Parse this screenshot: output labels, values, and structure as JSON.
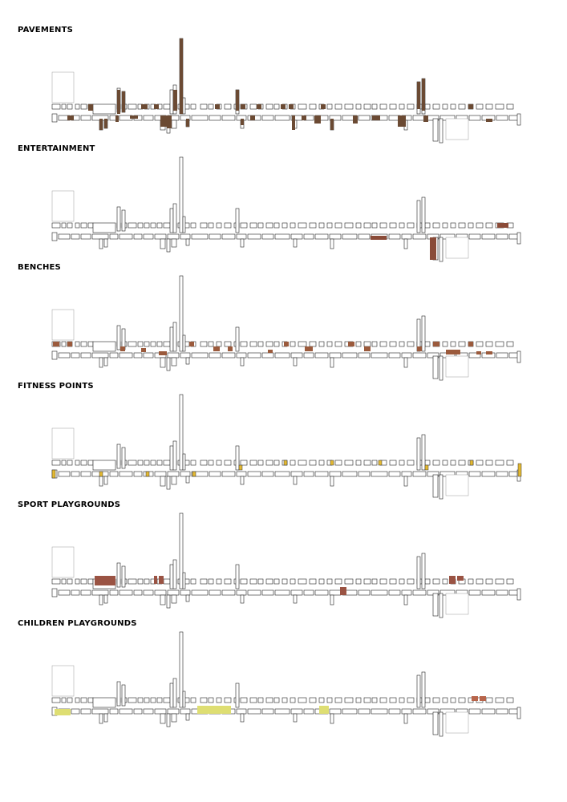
{
  "panels": [
    {
      "id": "pavements",
      "title": "PAVEMENTS",
      "highlight": {
        "color": "#6b4a33",
        "kind": "pavement"
      }
    },
    {
      "id": "entertainment",
      "title": "ENTERTAINMENT",
      "highlight": {
        "color": "#8a4b38",
        "kind": "entertainment"
      }
    },
    {
      "id": "benches",
      "title": "BENCHES",
      "highlight": {
        "color": "#9b5a3c",
        "kind": "bench"
      }
    },
    {
      "id": "fitness",
      "title": "FITNESS POINTS",
      "highlight": {
        "color": "#e4b931",
        "kind": "fitness"
      }
    },
    {
      "id": "sport",
      "title": "SPORT PLAYGROUNDS",
      "highlight": {
        "color": "#9a5343",
        "kind": "sport"
      }
    },
    {
      "id": "children",
      "title": "CHILDREN PLAYGROUNDS",
      "highlight": {
        "color": "#dede72",
        "kind": "children",
        "secondary_color": "#b8654b"
      }
    }
  ]
}
